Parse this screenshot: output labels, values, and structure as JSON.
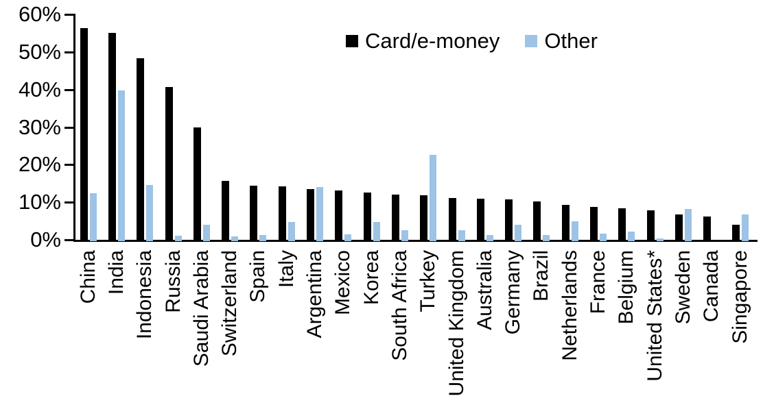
{
  "chart_data": {
    "type": "bar",
    "title": "",
    "xlabel": "",
    "ylabel": "",
    "ylim": [
      0,
      60
    ],
    "grid": false,
    "legend_position": "top-center",
    "y_tick_labels": [
      "0%",
      "10%",
      "20%",
      "30%",
      "40%",
      "50%",
      "60%"
    ],
    "y_tick_values": [
      0,
      10,
      20,
      30,
      40,
      50,
      60
    ],
    "categories": [
      "China",
      "India",
      "Indonesia",
      "Russia",
      "Saudi Arabia",
      "Switzerland",
      "Spain",
      "Italy",
      "Argentina",
      "Mexico",
      "Korea",
      "South Africa",
      "Turkey",
      "United Kingdom",
      "Australia",
      "Germany",
      "Brazil",
      "Netherlands",
      "France",
      "Belgium",
      "United States*",
      "Sweden",
      "Canada",
      "Singapore"
    ],
    "series": [
      {
        "name": "Card/e-money",
        "color": "#000000",
        "values": [
          56.4,
          55.0,
          48.3,
          40.6,
          30.0,
          15.7,
          14.4,
          14.2,
          13.5,
          13.1,
          12.5,
          12.0,
          11.9,
          11.2,
          10.9,
          10.8,
          10.2,
          9.3,
          8.8,
          8.3,
          7.9,
          6.7,
          6.2,
          4.1
        ]
      },
      {
        "name": "Other",
        "color": "#9DC3E6",
        "values": [
          12.4,
          39.8,
          14.6,
          1.1,
          4.0,
          1.0,
          1.2,
          4.7,
          14.1,
          1.5,
          4.7,
          2.5,
          22.7,
          2.5,
          1.2,
          4.1,
          1.3,
          5.0,
          1.7,
          2.2,
          0.4,
          8.2,
          0.0,
          6.8
        ]
      }
    ]
  }
}
